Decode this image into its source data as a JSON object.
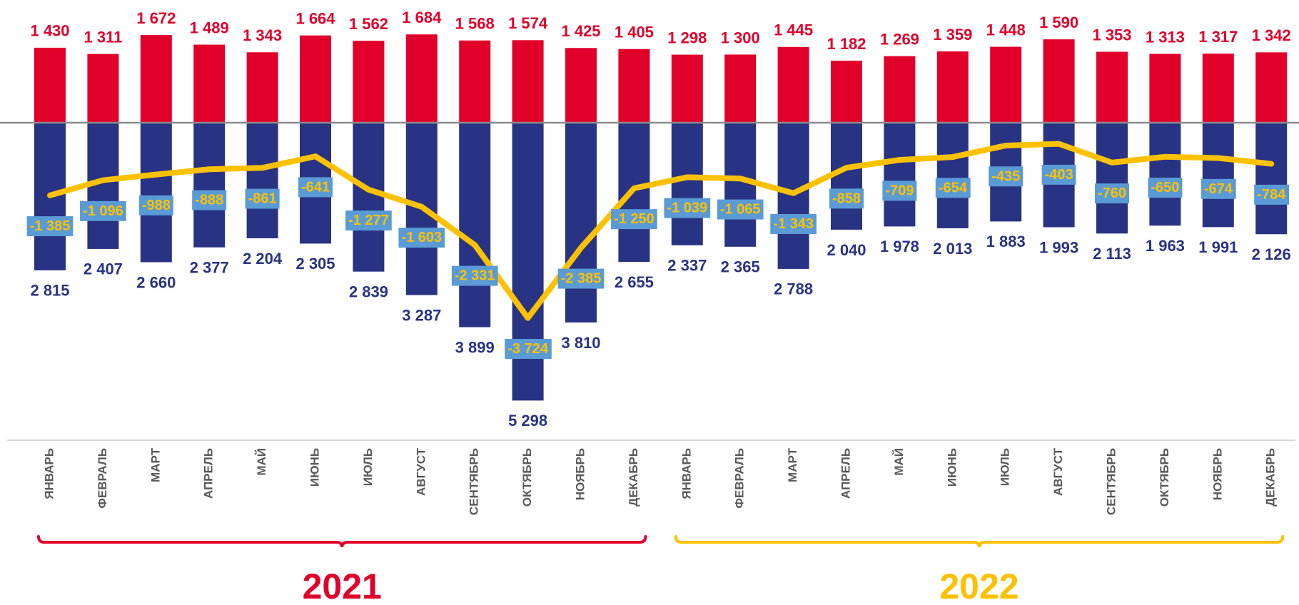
{
  "chart_data": {
    "type": "bar",
    "categories": [
      "ЯНВАРЬ",
      "ФЕВРАЛЬ",
      "МАРТ",
      "АПРЕЛЬ",
      "МАЙ",
      "ИЮНЬ",
      "ИЮЛЬ",
      "АВГУСТ",
      "СЕНТЯБРЬ",
      "ОКТЯБРЬ",
      "НОЯБРЬ",
      "ДЕКАБРЬ",
      "ЯНВАРЬ",
      "ФЕВРАЛЬ",
      "МАРТ",
      "АПРЕЛЬ",
      "МАЙ",
      "ИЮНЬ",
      "ИЮЛЬ",
      "АВГУСТ",
      "СЕНТЯБРЬ",
      "ОКТЯБРЬ",
      "НОЯБРЬ",
      "ДЕКАБРЬ"
    ],
    "groups": [
      {
        "name": "2021",
        "color": "#e0002a"
      },
      {
        "name": "2022",
        "color": "#fcc100"
      }
    ],
    "series": [
      {
        "type": "bar",
        "color": "#e0002a",
        "below_axis": false,
        "values": [
          1430,
          1311,
          1672,
          1489,
          1343,
          1664,
          1562,
          1684,
          1568,
          1574,
          1425,
          1405,
          1298,
          1300,
          1445,
          1182,
          1269,
          1359,
          1448,
          1590,
          1353,
          1313,
          1317,
          1342
        ],
        "value_labels": [
          "1 430",
          "1 311",
          "1 672",
          "1 489",
          "1 343",
          "1 664",
          "1 562",
          "1 684",
          "1 568",
          "1 574",
          "1 425",
          "1 405",
          "1 298",
          "1 300",
          "1 445",
          "1 182",
          "1 269",
          "1 359",
          "1 448",
          "1 590",
          "1 353",
          "1 313",
          "1 317",
          "1 342"
        ]
      },
      {
        "type": "bar",
        "color": "#283383",
        "below_axis": true,
        "values": [
          2815,
          2407,
          2660,
          2377,
          2204,
          2305,
          2839,
          3287,
          3899,
          5298,
          3810,
          2655,
          2337,
          2365,
          2788,
          2040,
          1978,
          2013,
          1883,
          1993,
          2113,
          1963,
          1991,
          2126
        ],
        "value_labels": [
          "2 815",
          "2 407",
          "2 660",
          "2 377",
          "2 204",
          "2 305",
          "2 839",
          "3 287",
          "3 899",
          "5 298",
          "3 810",
          "2 655",
          "2 337",
          "2 365",
          "2 788",
          "2 040",
          "1 978",
          "2 013",
          "1 883",
          "1 993",
          "2 113",
          "1 963",
          "1 991",
          "2 126"
        ]
      },
      {
        "type": "line",
        "color": "#fcc100",
        "values": [
          -1385,
          -1096,
          -988,
          -888,
          -861,
          -641,
          -1277,
          -1603,
          -2331,
          -3724,
          -2385,
          -1250,
          -1039,
          -1065,
          -1343,
          -858,
          -709,
          -654,
          -435,
          -403,
          -760,
          -650,
          -674,
          -784
        ],
        "value_labels": [
          "-1 385",
          "-1 096",
          "-988",
          "-888",
          "-861",
          "-641",
          "-1 277",
          "-1 603",
          "-2 331",
          "-3 724",
          "-2 385",
          "-1 250",
          "-1 039",
          "-1 065",
          "-1 343",
          "-858",
          "-709",
          "-654",
          "-435",
          "-403",
          "-760",
          "-650",
          "-674",
          "-784"
        ]
      }
    ]
  }
}
